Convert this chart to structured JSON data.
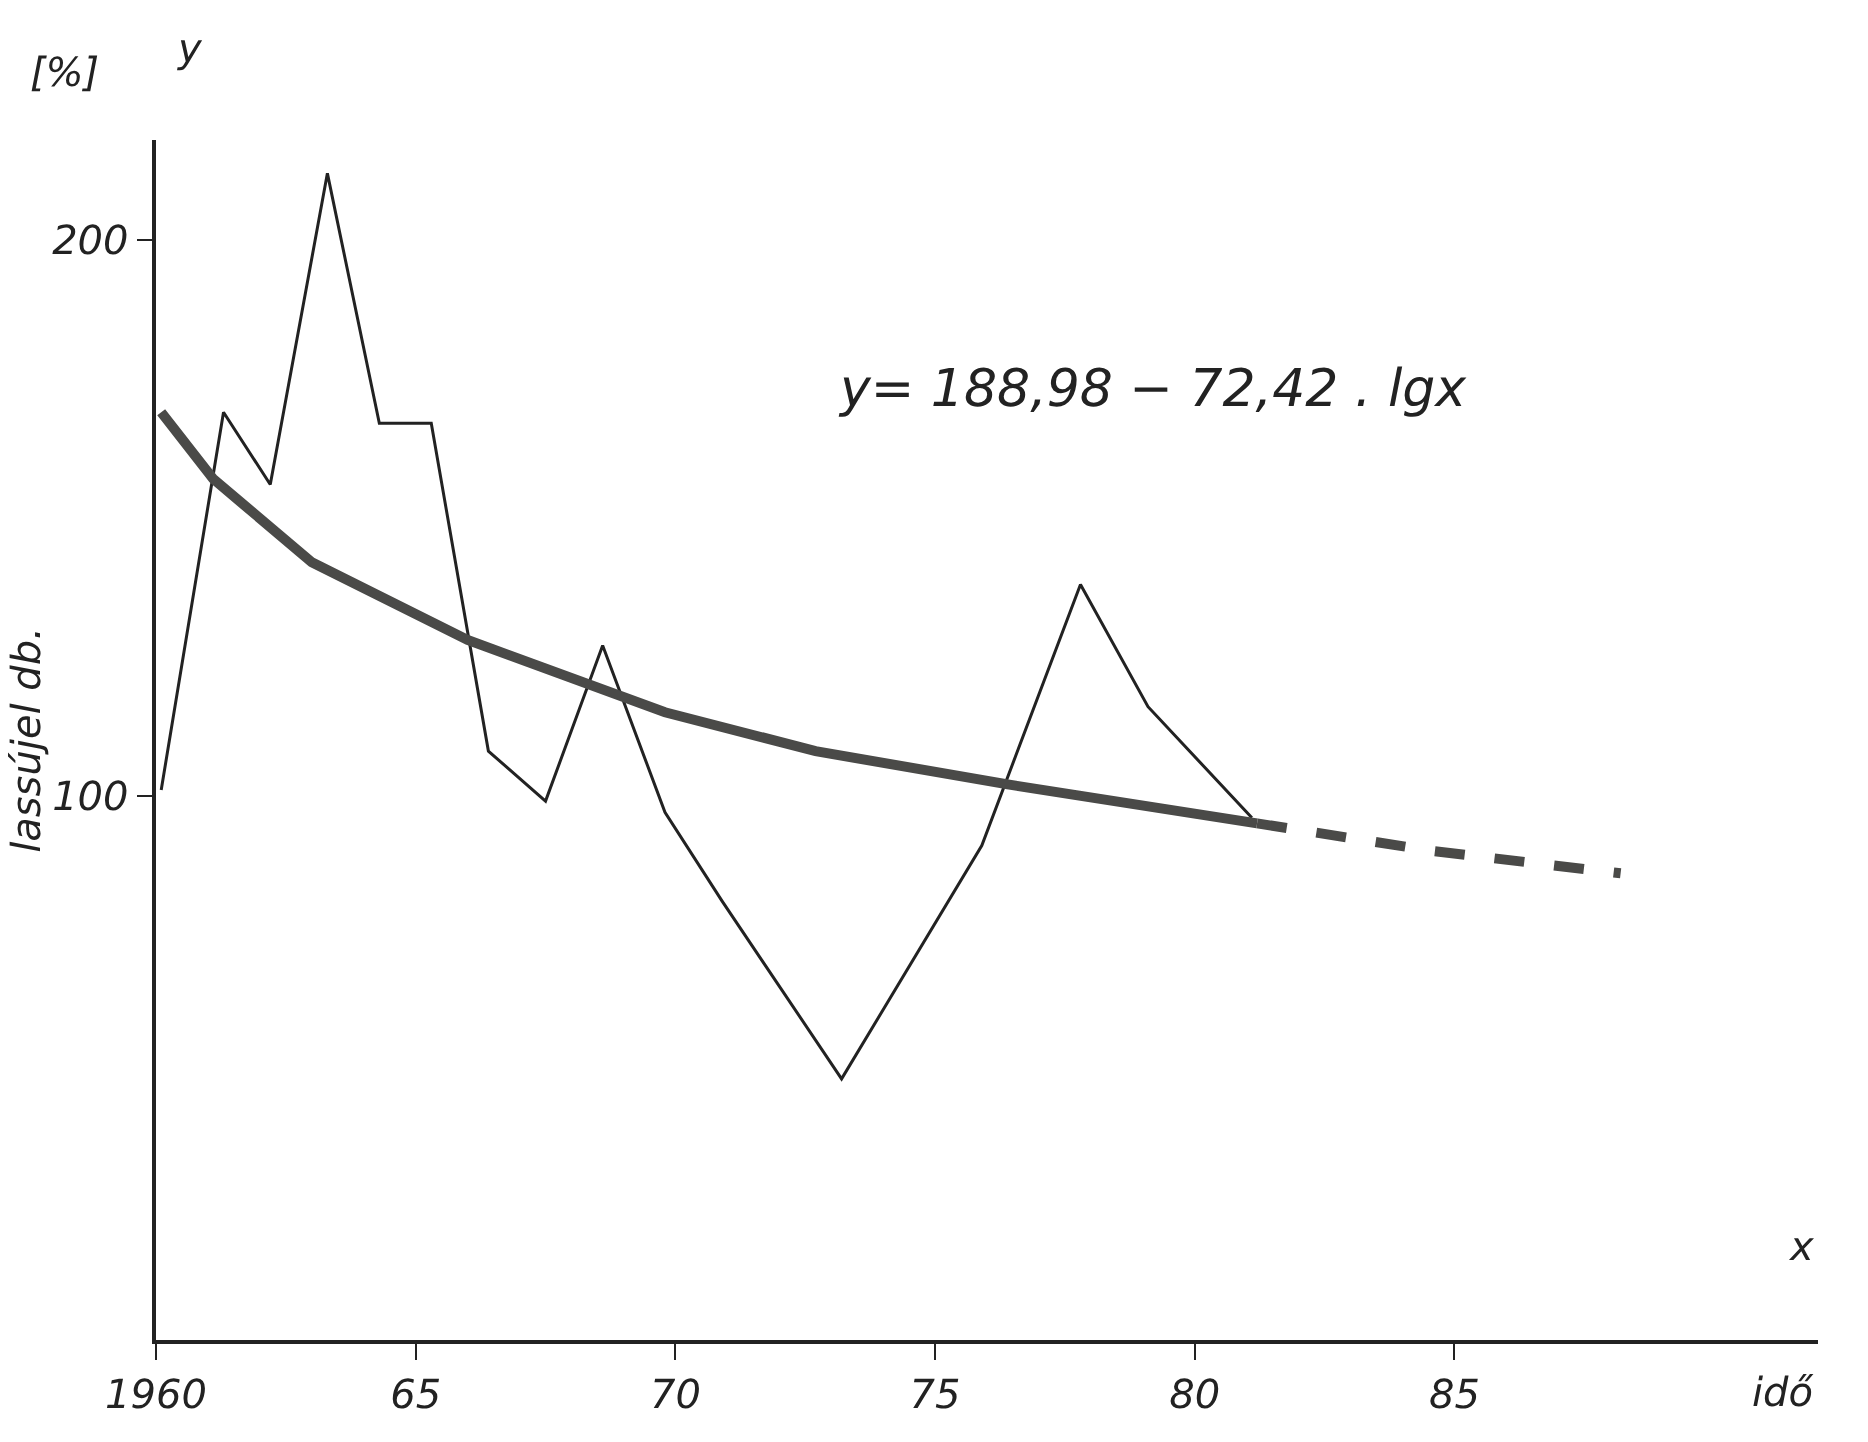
{
  "chart_data": {
    "type": "line",
    "xlabel": "idő",
    "ylabel": "lassújel db.",
    "annotations": [
      "y= 188,98 − 72,42 . lgx",
      "[%]",
      "y",
      "x"
    ],
    "xlim": [
      1960,
      1992
    ],
    "ylim": [
      2,
      218
    ],
    "xticks": [
      {
        "value": 1960,
        "label": "1960"
      },
      {
        "value": 1965,
        "label": "65"
      },
      {
        "value": 1970,
        "label": "70"
      },
      {
        "value": 1975,
        "label": "75"
      },
      {
        "value": 1980,
        "label": "80"
      },
      {
        "value": 1985,
        "label": "85"
      }
    ],
    "yticks": [
      100,
      200
    ],
    "series": [
      {
        "color": "#222222",
        "line_style": "solid",
        "x": [
          1960.1,
          1961.3,
          1962.2,
          1963.3,
          1964.3,
          1965.3,
          1966.4,
          1967.5,
          1968.6,
          1969.8,
          1970.9,
          1973.2,
          1975.9,
          1977.8,
          1979.1,
          1981.1
        ],
        "values": [
          101,
          169,
          156,
          212,
          167,
          167,
          108,
          99,
          127,
          97,
          81,
          49,
          91,
          138,
          116,
          96
        ]
      },
      {
        "color": "#4a4a48",
        "line_style": "solid",
        "x": [
          1960.1,
          1961.1,
          1963.0,
          1966.0,
          1969.8,
          1972.7,
          1976.4,
          1981.2
        ],
        "values": [
          169,
          157,
          142,
          128,
          115,
          108,
          102,
          95
        ]
      },
      {
        "color": "#4a4a48",
        "line_style": "dashed",
        "x": [
          1981.2,
          1984.6,
          1988.2
        ],
        "values": [
          95,
          90,
          86
        ]
      }
    ]
  }
}
